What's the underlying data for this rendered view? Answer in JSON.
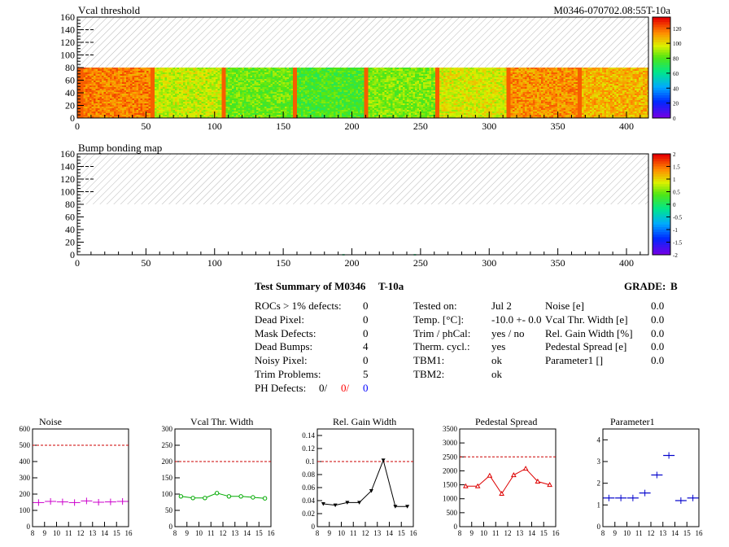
{
  "maps": [
    {
      "title": "Vcal threshold",
      "module_label": "M0346-070702.08:55T-10a",
      "y_ticks": [
        0,
        20,
        40,
        60,
        80,
        100,
        120,
        140,
        160
      ],
      "x_ticks": [
        0,
        50,
        100,
        150,
        200,
        250,
        300,
        350,
        400
      ],
      "z_ticks": [
        "0",
        "20",
        "40",
        "60",
        "80",
        "100",
        "120"
      ],
      "filled_rows": [
        0,
        80
      ],
      "xlim": [
        0,
        416
      ],
      "ylim": [
        0,
        160
      ]
    },
    {
      "title": "Bump bonding map",
      "y_ticks": [
        0,
        20,
        40,
        60,
        80,
        100,
        120,
        140,
        160
      ],
      "x_ticks": [
        0,
        50,
        100,
        150,
        200,
        250,
        300,
        350,
        400
      ],
      "z_ticks": [
        "2",
        "1.5",
        "1",
        "0.5",
        "0",
        "-0.5",
        "-1",
        "-1.5",
        "-2"
      ],
      "xlim": [
        0,
        416
      ],
      "ylim": [
        0,
        160
      ]
    }
  ],
  "summary": {
    "title": "Test Summary of M0346",
    "tag": "T-10a",
    "grade_label": "GRADE:",
    "grade": "B",
    "col1": [
      {
        "label": "ROCs > 1% defects:",
        "value": "0"
      },
      {
        "label": "Dead Pixel:",
        "value": "0"
      },
      {
        "label": "Mask Defects:",
        "value": "0"
      },
      {
        "label": "Dead Bumps:",
        "value": "4"
      },
      {
        "label": "Noisy Pixel:",
        "value": "0"
      },
      {
        "label": "Trim Problems:",
        "value": "5"
      }
    ],
    "ph_label": "PH Defects:",
    "ph_values": [
      "0/",
      "0/",
      "0"
    ],
    "ph_colors": [
      "#000000",
      "#ff0000",
      "#0000ff"
    ],
    "col2": [
      {
        "label": "Tested on:",
        "value": "Jul 2"
      },
      {
        "label": "Temp. [°C]:",
        "value": "-10.0 +- 0.0"
      },
      {
        "label": "Trim / phCal:",
        "value": "yes / no"
      },
      {
        "label": "Therm. cycl.:",
        "value": "yes"
      },
      {
        "label": "TBM1:",
        "value": "ok"
      },
      {
        "label": "TBM2:",
        "value": "ok"
      }
    ],
    "col3": [
      {
        "label": "Noise [e]",
        "value": "0.0"
      },
      {
        "label": "Vcal Thr. Width [e]",
        "value": "0.0"
      },
      {
        "label": "Rel. Gain Width [%]",
        "value": "0.0"
      },
      {
        "label": "Pedestal Spread [e]",
        "value": "0.0"
      },
      {
        "label": "Parameter1 []",
        "value": "0.0"
      }
    ]
  },
  "chart_data": [
    {
      "type": "scatter",
      "title": "Noise",
      "color": "#cc00cc",
      "marker": "plus",
      "x": [
        8.5,
        9.5,
        10.5,
        11.5,
        12.5,
        13.5,
        14.5,
        15.5
      ],
      "y": [
        148,
        155,
        152,
        148,
        158,
        150,
        152,
        155
      ],
      "ylim": [
        0,
        600
      ],
      "yticks": [
        "0",
        "100",
        "200",
        "300",
        "400",
        "500",
        "600"
      ],
      "xlim": [
        8,
        16
      ],
      "xticks": [
        "8",
        "9",
        "10",
        "11",
        "12",
        "13",
        "14",
        "15",
        "16"
      ],
      "threshold": 500
    },
    {
      "type": "line",
      "title": "Vcal Thr. Width",
      "color": "#00aa00",
      "marker": "circle",
      "x": [
        8.5,
        9.5,
        10.5,
        11.5,
        12.5,
        13.5,
        14.5,
        15.5
      ],
      "y": [
        93,
        88,
        88,
        103,
        93,
        93,
        90,
        87
      ],
      "ylim": [
        0,
        300
      ],
      "yticks": [
        "0",
        "50",
        "100",
        "150",
        "200",
        "250",
        "300"
      ],
      "xlim": [
        8,
        16
      ],
      "xticks": [
        "8",
        "9",
        "10",
        "11",
        "12",
        "13",
        "14",
        "15",
        "16"
      ],
      "threshold": 200
    },
    {
      "type": "line",
      "title": "Rel. Gain Width",
      "color": "#000000",
      "marker": "triangle-down",
      "x": [
        8.5,
        9.5,
        10.5,
        11.5,
        12.5,
        13.5,
        14.5,
        15.5
      ],
      "y": [
        0.035,
        0.033,
        0.037,
        0.037,
        0.055,
        0.102,
        0.031,
        0.031
      ],
      "ylim": [
        0,
        0.15
      ],
      "yticks": [
        "0",
        "0.02",
        "0.04",
        "0.06",
        "0.08",
        "0.1",
        "0.12",
        "0.14"
      ],
      "xlim": [
        8,
        16
      ],
      "xticks": [
        "8",
        "9",
        "10",
        "11",
        "12",
        "13",
        "14",
        "15",
        "16"
      ],
      "threshold": 0.1
    },
    {
      "type": "line",
      "title": "Pedestal Spread",
      "color": "#dd0000",
      "marker": "triangle-up",
      "x": [
        8.5,
        9.5,
        10.5,
        11.5,
        12.5,
        13.5,
        14.5,
        15.5
      ],
      "y": [
        1450,
        1450,
        1830,
        1180,
        1850,
        2080,
        1620,
        1500
      ],
      "ylim": [
        0,
        3500
      ],
      "yticks": [
        "0",
        "500",
        "1000",
        "1500",
        "2000",
        "2500",
        "3000",
        "3500"
      ],
      "xlim": [
        8,
        16
      ],
      "xticks": [
        "8",
        "9",
        "10",
        "11",
        "12",
        "13",
        "14",
        "15",
        "16"
      ],
      "threshold": 2500
    },
    {
      "type": "scatter",
      "title": "Parameter1",
      "color": "#0000cc",
      "marker": "plus",
      "x": [
        8.5,
        9.5,
        10.5,
        11.5,
        12.5,
        13.5,
        14.5,
        15.5
      ],
      "y": [
        1.32,
        1.32,
        1.32,
        1.55,
        2.38,
        3.28,
        1.2,
        1.32
      ],
      "ylim": [
        0,
        4.5
      ],
      "yticks": [
        "0",
        "1",
        "2",
        "3",
        "4"
      ],
      "xlim": [
        8,
        16
      ],
      "xticks": [
        "8",
        "9",
        "10",
        "11",
        "12",
        "13",
        "14",
        "15",
        "16"
      ]
    }
  ]
}
